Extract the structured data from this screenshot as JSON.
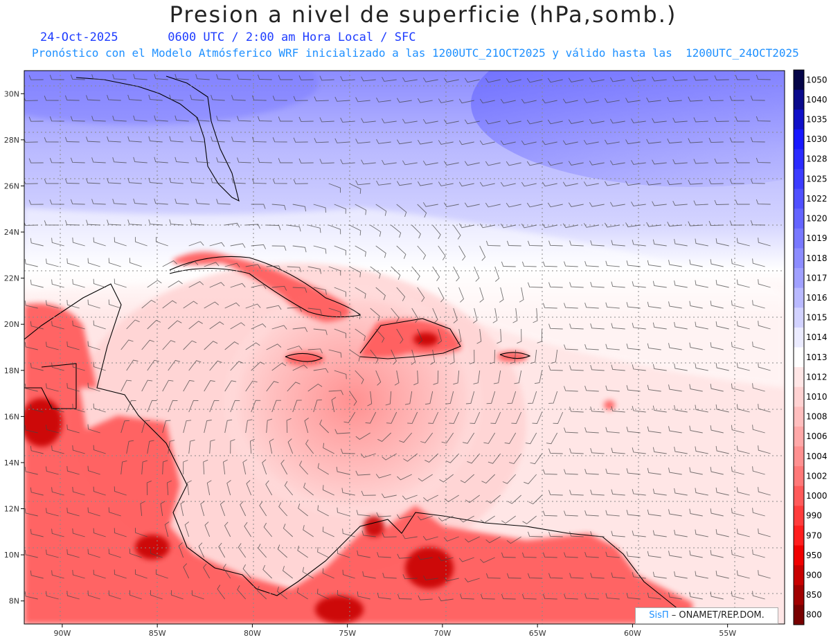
{
  "header": {
    "title": "Presion a nivel de superficie (hPa,somb.)",
    "date": "24-Oct-2025",
    "valid_time": "0600 UTC / 2:00 am Hora Local / SFC",
    "subtitle": "Pronóstico con el Modelo Atmósferico WRF inicializado a las 1200UTC_21OCT2025 y válido hasta las  1200UTC_24OCT2025"
  },
  "axes": {
    "longitude_labels": [
      "90W",
      "85W",
      "80W",
      "75W",
      "70W",
      "65W",
      "60W",
      "55W"
    ],
    "longitude_values": [
      -90,
      -85,
      -80,
      -75,
      -70,
      -65,
      -60,
      -55
    ],
    "latitude_labels": [
      "30N",
      "28N",
      "26N",
      "24N",
      "22N",
      "20N",
      "18N",
      "16N",
      "14N",
      "12N",
      "10N",
      "8N"
    ],
    "latitude_values": [
      30,
      28,
      26,
      24,
      22,
      20,
      18,
      16,
      14,
      12,
      10,
      8
    ],
    "lon_range": [
      -92,
      -52
    ],
    "lat_range": [
      7,
      31
    ]
  },
  "colorbar": {
    "levels": [
      "1050",
      "1040",
      "1035",
      "1030",
      "1028",
      "1025",
      "1022",
      "1020",
      "1019",
      "1018",
      "1017",
      "1016",
      "1015",
      "1014",
      "1013",
      "1012",
      "1010",
      "1008",
      "1006",
      "1004",
      "1002",
      "1000",
      "990",
      "970",
      "950",
      "900",
      "850",
      "800"
    ],
    "colors": [
      "#050548",
      "#0a0a8c",
      "#1010c8",
      "#1818ff",
      "#2b2bff",
      "#3c3cff",
      "#5050ff",
      "#6464ff",
      "#7878ff",
      "#8c8cff",
      "#a0a0ff",
      "#b9b9ff",
      "#d2d2ff",
      "#ebebff",
      "#ffffff",
      "#ffe6e6",
      "#ffd2d2",
      "#ffbebe",
      "#ffa8a8",
      "#ff9090",
      "#ff7878",
      "#ff5a5a",
      "#ff3c3c",
      "#ff1e1e",
      "#f00000",
      "#c80000",
      "#a00000",
      "#780000"
    ]
  },
  "features": {
    "low_center": {
      "lon": -75.5,
      "lat": 16.3
    }
  },
  "credit": {
    "brand": "SisΠ",
    "text": "– ONAMET/REP.DOM."
  }
}
